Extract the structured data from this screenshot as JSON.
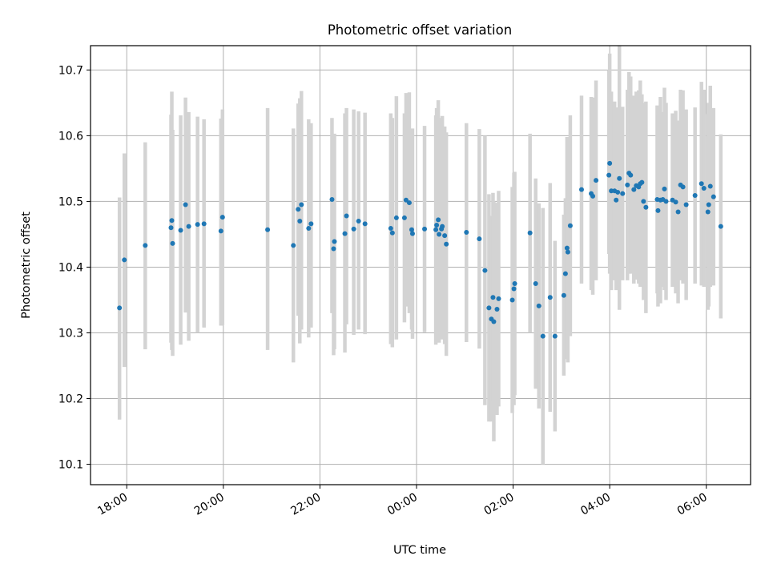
{
  "chart_data": {
    "type": "scatter",
    "title": "Photometric offset variation",
    "xlabel": "UTC time",
    "ylabel": "Photometric offset",
    "grid": true,
    "x_is_time": true,
    "x_range": [
      "17:15",
      "30:55"
    ],
    "ylim": [
      10.069,
      10.737
    ],
    "x_ticks": [
      "18:00",
      "20:00",
      "22:00",
      "00:00",
      "02:00",
      "04:00",
      "06:00"
    ],
    "y_ticks": [
      "10.1",
      "10.2",
      "10.3",
      "10.4",
      "10.5",
      "10.6",
      "10.7"
    ],
    "marker_color": "#1f77b4",
    "errorbar_color": "#d3d3d3",
    "points": [
      [
        "17:51",
        10.338,
        10.168,
        10.506
      ],
      [
        "17:57",
        10.411,
        10.248,
        10.573
      ],
      [
        "18:23",
        10.433,
        10.275,
        10.59
      ],
      [
        "18:55",
        10.46,
        10.285,
        10.632
      ],
      [
        "18:56",
        10.471,
        10.274,
        10.667
      ],
      [
        "18:57",
        10.436,
        10.265,
        10.609
      ],
      [
        "19:07",
        10.456,
        10.282,
        10.631
      ],
      [
        "19:13",
        10.495,
        10.331,
        10.658
      ],
      [
        "19:17",
        10.462,
        10.288,
        10.636
      ],
      [
        "19:28",
        10.465,
        10.3,
        10.629
      ],
      [
        "19:36",
        10.466,
        10.308,
        10.625
      ],
      [
        "19:57",
        10.455,
        10.311,
        10.626
      ],
      [
        "19:59",
        10.476,
        10.312,
        10.64
      ],
      [
        "20:55",
        10.457,
        10.274,
        10.642
      ],
      [
        "21:27",
        10.433,
        10.255,
        10.611
      ],
      [
        "21:33",
        10.488,
        10.326,
        10.649
      ],
      [
        "21:35",
        10.47,
        10.284,
        10.657
      ],
      [
        "21:37",
        10.495,
        10.305,
        10.668
      ],
      [
        "21:46",
        10.459,
        10.293,
        10.625
      ],
      [
        "21:49",
        10.466,
        10.308,
        10.619
      ],
      [
        "22:15",
        10.503,
        10.33,
        10.627
      ],
      [
        "22:17",
        10.428,
        10.266,
        10.59
      ],
      [
        "22:18",
        10.439,
        10.275,
        10.603
      ],
      [
        "22:31",
        10.451,
        10.27,
        10.634
      ],
      [
        "22:33",
        10.478,
        10.313,
        10.642
      ],
      [
        "22:42",
        10.458,
        10.297,
        10.64
      ],
      [
        "22:48",
        10.47,
        10.305,
        10.637
      ],
      [
        "22:56",
        10.466,
        10.298,
        10.635
      ],
      [
        "23:28",
        10.459,
        10.283,
        10.634
      ],
      [
        "23:30",
        10.452,
        10.278,
        10.627
      ],
      [
        "23:35",
        10.475,
        10.29,
        10.66
      ],
      [
        "23:45",
        10.475,
        10.316,
        10.634
      ],
      [
        "23:47",
        10.502,
        10.34,
        10.665
      ],
      [
        "23:51",
        10.498,
        10.33,
        10.666
      ],
      [
        "23:54",
        10.457,
        10.305,
        10.609
      ],
      [
        "23:55",
        10.451,
        10.291,
        10.611
      ],
      [
        "24:10",
        10.458,
        10.301,
        10.615
      ],
      [
        "24:24",
        10.457,
        10.282,
        10.631
      ],
      [
        "24:25",
        10.464,
        10.286,
        10.642
      ],
      [
        "24:27",
        10.472,
        10.29,
        10.654
      ],
      [
        "24:28",
        10.45,
        10.285,
        10.616
      ],
      [
        "24:31",
        10.458,
        10.29,
        10.627
      ],
      [
        "24:32",
        10.462,
        10.295,
        10.63
      ],
      [
        "24:35",
        10.448,
        10.283,
        10.614
      ],
      [
        "24:37",
        10.435,
        10.265,
        10.605
      ],
      [
        "25:02",
        10.453,
        10.286,
        10.619
      ],
      [
        "25:18",
        10.443,
        10.276,
        10.61
      ],
      [
        "25:25",
        10.395,
        10.19,
        10.6
      ],
      [
        "25:30",
        10.338,
        10.165,
        10.511
      ],
      [
        "25:33",
        10.321,
        10.165,
        10.478
      ],
      [
        "25:35",
        10.354,
        10.195,
        10.513
      ],
      [
        "25:36",
        10.317,
        10.135,
        10.5
      ],
      [
        "25:40",
        10.336,
        10.175,
        10.498
      ],
      [
        "25:42",
        10.352,
        10.188,
        10.516
      ],
      [
        "25:59",
        10.35,
        10.178,
        10.522
      ],
      [
        "26:01",
        10.367,
        10.19,
        10.544
      ],
      [
        "26:02",
        10.375,
        10.205,
        10.545
      ],
      [
        "26:21",
        10.452,
        10.3,
        10.603
      ],
      [
        "26:28",
        10.375,
        10.215,
        10.535
      ],
      [
        "26:32",
        10.341,
        10.185,
        10.497
      ],
      [
        "26:37",
        10.295,
        10.1,
        10.49
      ],
      [
        "26:46",
        10.354,
        10.18,
        10.528
      ],
      [
        "26:52",
        10.295,
        10.15,
        10.44
      ],
      [
        "27:03",
        10.357,
        10.235,
        10.48
      ],
      [
        "27:05",
        10.39,
        10.275,
        10.505
      ],
      [
        "27:07",
        10.429,
        10.26,
        10.598
      ],
      [
        "27:08",
        10.423,
        10.255,
        10.59
      ],
      [
        "27:11",
        10.463,
        10.295,
        10.631
      ],
      [
        "27:25",
        10.518,
        10.375,
        10.661
      ],
      [
        "27:37",
        10.512,
        10.365,
        10.659
      ],
      [
        "27:39",
        10.508,
        10.358,
        10.658
      ],
      [
        "27:43",
        10.532,
        10.38,
        10.684
      ],
      [
        "27:59",
        10.54,
        10.42,
        10.7
      ],
      [
        "28:00",
        10.558,
        10.39,
        10.725
      ],
      [
        "28:02",
        10.516,
        10.365,
        10.667
      ],
      [
        "28:06",
        10.516,
        10.38,
        10.652
      ],
      [
        "28:08",
        10.502,
        10.365,
        10.639
      ],
      [
        "28:10",
        10.514,
        10.385,
        10.643
      ],
      [
        "28:12",
        10.535,
        10.335,
        10.737
      ],
      [
        "28:16",
        10.512,
        10.38,
        10.644
      ],
      [
        "28:22",
        10.525,
        10.38,
        10.67
      ],
      [
        "28:24",
        10.543,
        10.39,
        10.697
      ],
      [
        "28:26",
        10.54,
        10.39,
        10.69
      ],
      [
        "28:30",
        10.518,
        10.375,
        10.661
      ],
      [
        "28:33",
        10.524,
        10.381,
        10.667
      ],
      [
        "28:36",
        10.522,
        10.375,
        10.669
      ],
      [
        "28:38",
        10.527,
        10.37,
        10.684
      ],
      [
        "28:40",
        10.529,
        10.395,
        10.663
      ],
      [
        "28:42",
        10.5,
        10.35,
        10.65
      ],
      [
        "28:45",
        10.491,
        10.33,
        10.652
      ],
      [
        "28:59",
        10.503,
        10.36,
        10.646
      ],
      [
        "29:00",
        10.486,
        10.34,
        10.632
      ],
      [
        "29:03",
        10.502,
        10.345,
        10.659
      ],
      [
        "29:06",
        10.503,
        10.37,
        10.636
      ],
      [
        "29:08",
        10.519,
        10.365,
        10.673
      ],
      [
        "29:10",
        10.5,
        10.35,
        10.65
      ],
      [
        "29:18",
        10.502,
        10.37,
        10.634
      ],
      [
        "29:22",
        10.499,
        10.36,
        10.638
      ],
      [
        "29:25",
        10.484,
        10.345,
        10.623
      ],
      [
        "29:28",
        10.525,
        10.38,
        10.67
      ],
      [
        "29:31",
        10.522,
        10.375,
        10.669
      ],
      [
        "29:35",
        10.495,
        10.35,
        10.64
      ],
      [
        "29:46",
        10.509,
        10.375,
        10.643
      ],
      [
        "29:54",
        10.527,
        10.372,
        10.682
      ],
      [
        "29:57",
        10.52,
        10.37,
        10.67
      ],
      [
        "30:02",
        10.484,
        10.335,
        10.633
      ],
      [
        "30:03",
        10.495,
        10.34,
        10.65
      ],
      [
        "30:05",
        10.523,
        10.37,
        10.676
      ],
      [
        "30:09",
        10.507,
        10.372,
        10.642
      ],
      [
        "30:18",
        10.462,
        10.322,
        10.602
      ]
    ]
  }
}
